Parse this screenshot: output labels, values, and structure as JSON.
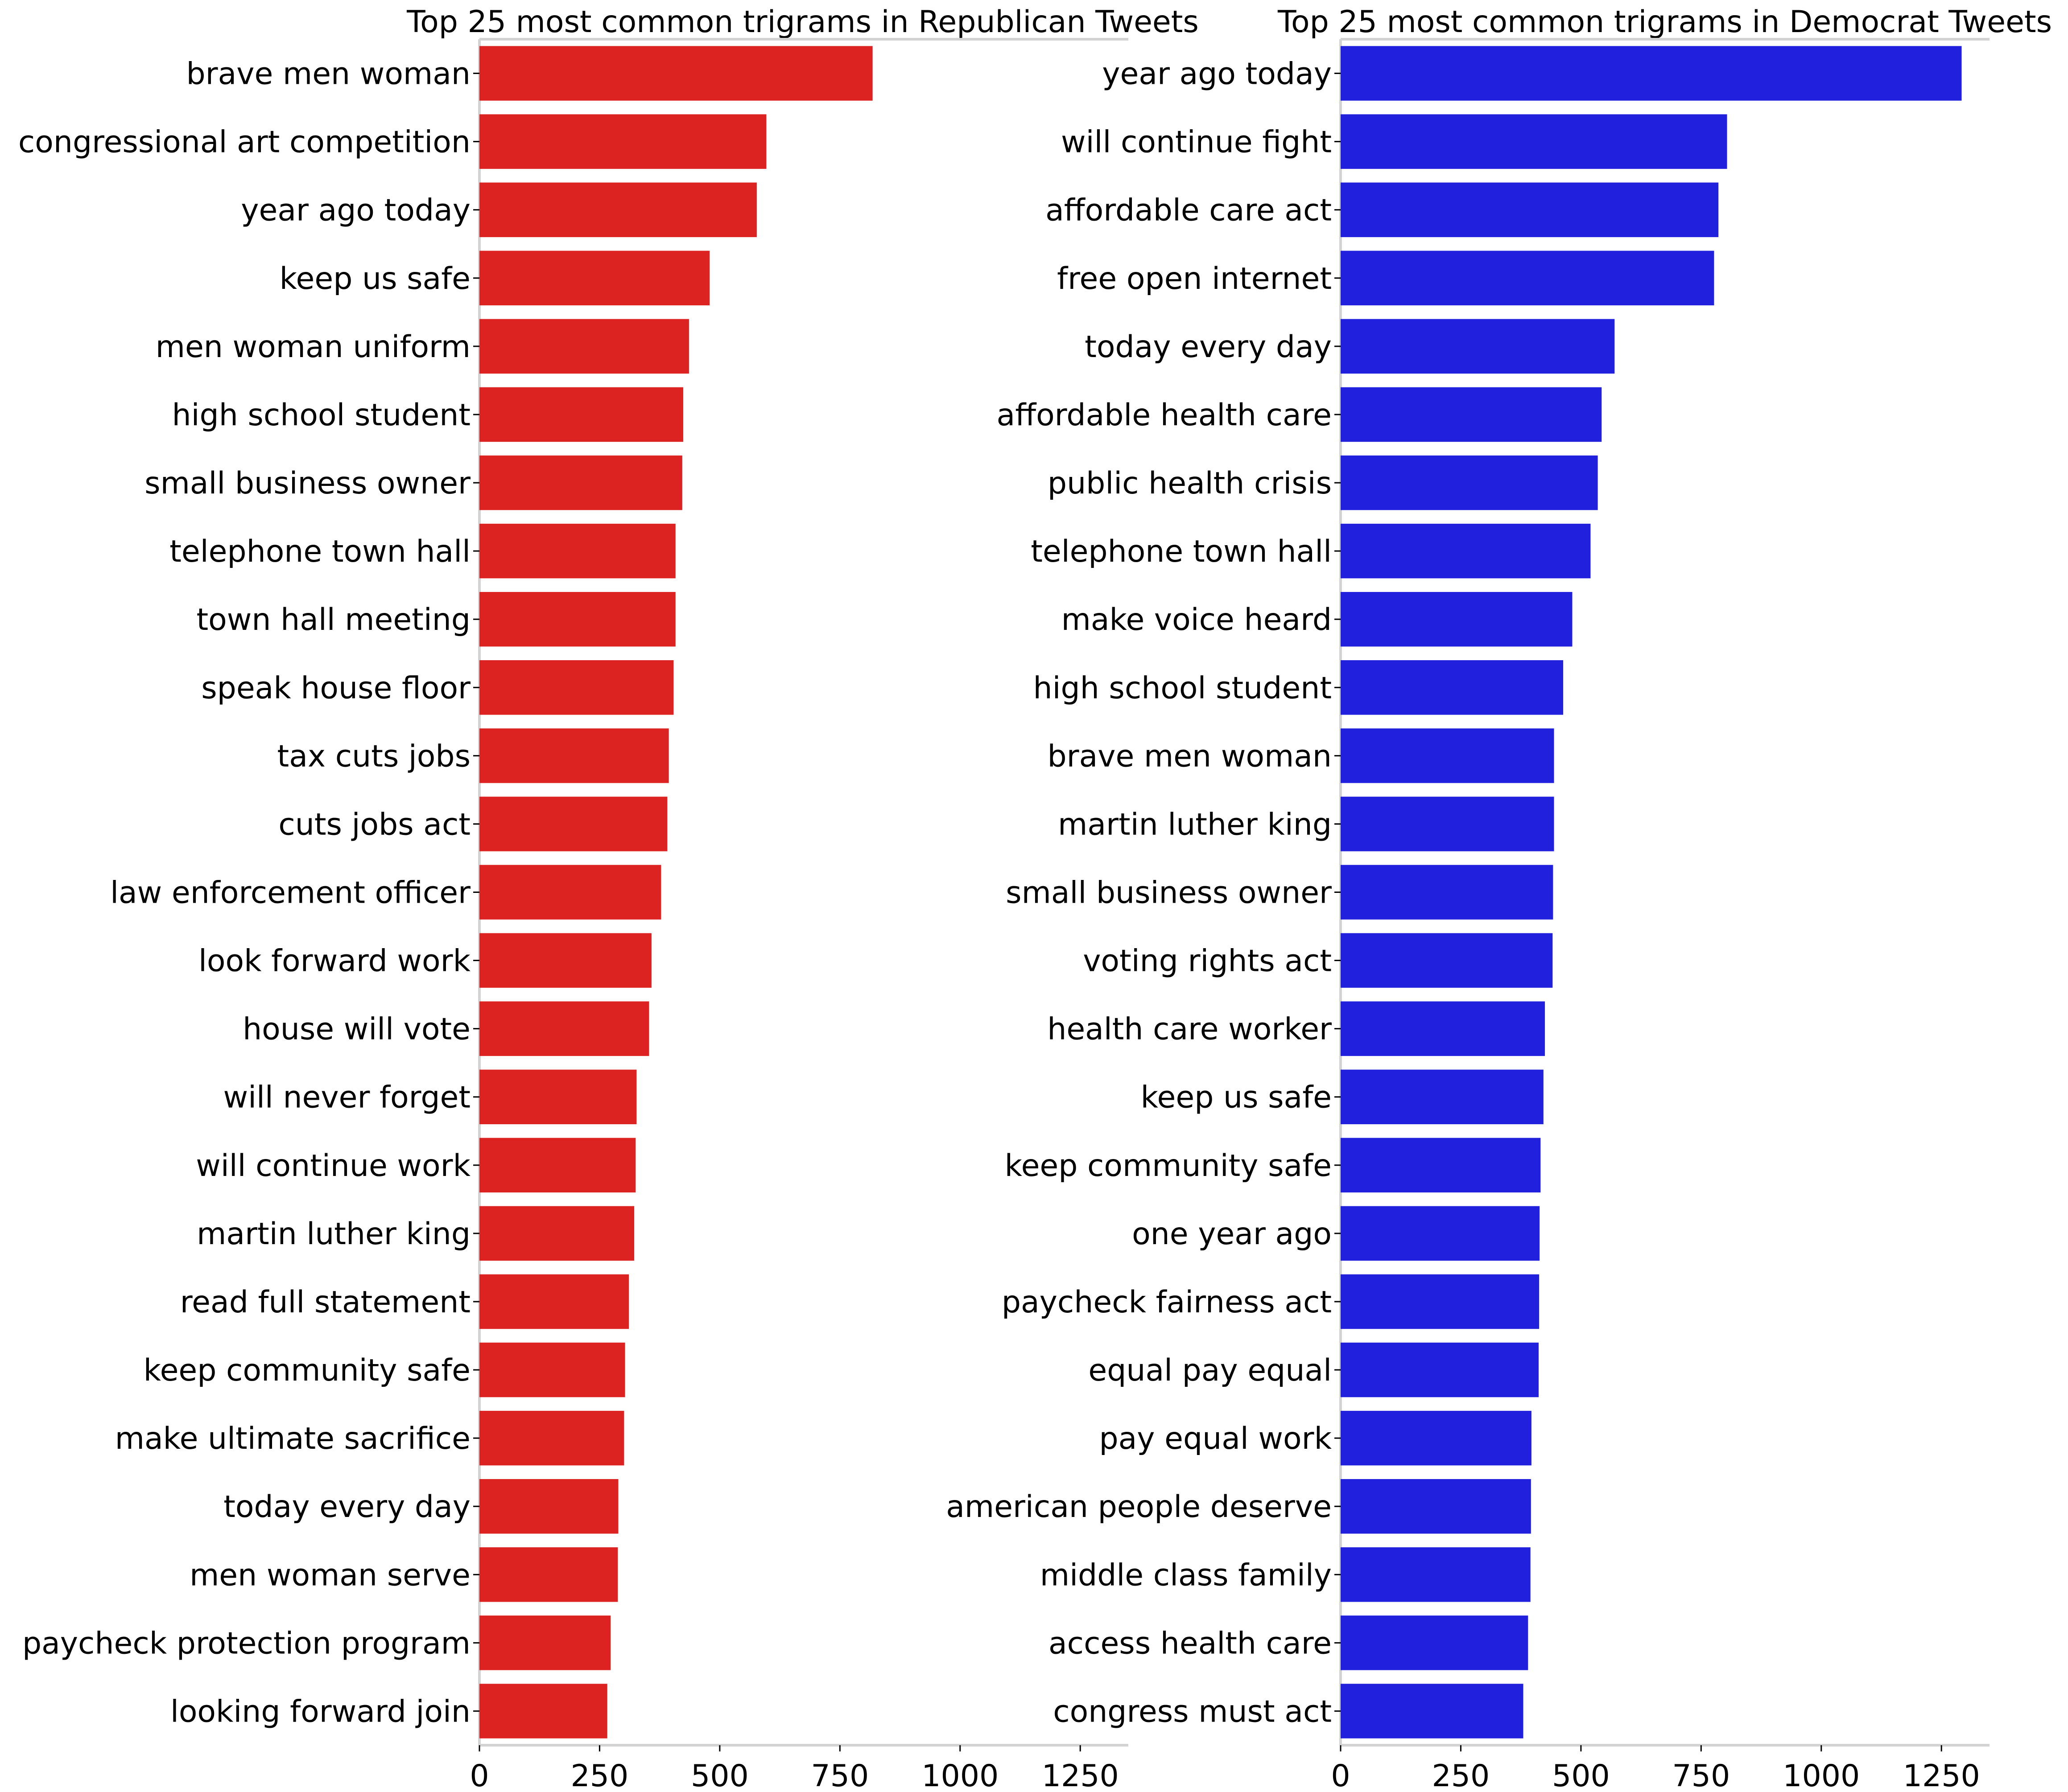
{
  "chart_data": [
    {
      "type": "bar",
      "orientation": "horizontal",
      "title": "Top 25 most common trigrams in Republican Tweets",
      "xlabel": "",
      "ylabel": "",
      "color": "#dd2222",
      "xlim": [
        0,
        1350
      ],
      "xticks": [
        0,
        250,
        500,
        750,
        1000,
        1250
      ],
      "grid": false,
      "categories": [
        "brave men woman",
        "congressional art competition",
        "year ago today",
        "keep us safe",
        "men woman uniform",
        "high school student",
        "small business owner",
        "telephone town hall",
        "town hall meeting",
        "speak house floor",
        "tax cuts jobs",
        "cuts jobs act",
        "law enforcement officer",
        "look forward work",
        "house will vote",
        "will never forget",
        "will continue work",
        "martin luther king",
        "read full statement",
        "keep community safe",
        "make ultimate sacrifice",
        "today every day",
        "men woman serve",
        "paycheck protection program",
        "looking forward join"
      ],
      "values": [
        818,
        597,
        577,
        479,
        436,
        424,
        422,
        408,
        408,
        404,
        394,
        391,
        378,
        358,
        353,
        327,
        325,
        322,
        311,
        303,
        301,
        289,
        288,
        273,
        266
      ]
    },
    {
      "type": "bar",
      "orientation": "horizontal",
      "title": "Top 25 most common trigrams in Democrat Tweets",
      "xlabel": "",
      "ylabel": "",
      "color": "#2020dd",
      "xlim": [
        0,
        1350
      ],
      "xticks": [
        0,
        250,
        500,
        750,
        1000,
        1250
      ],
      "grid": false,
      "categories": [
        "year ago today",
        "will continue fight",
        "affordable care act",
        "free open internet",
        "today every day",
        "affordable health care",
        "public health crisis",
        "telephone town hall",
        "make voice heard",
        "high school student",
        "brave men woman",
        "martin luther king",
        "small business owner",
        "voting rights act",
        "health care worker",
        "keep us safe",
        "keep community safe",
        "one year ago",
        "paycheck fairness act",
        "equal pay equal",
        "pay equal work",
        "american people deserve",
        "middle class family",
        "access health care",
        "congress must act"
      ],
      "values": [
        1292,
        804,
        786,
        777,
        570,
        543,
        535,
        520,
        482,
        463,
        444,
        444,
        442,
        441,
        425,
        422,
        416,
        414,
        413,
        412,
        397,
        396,
        395,
        390,
        380
      ]
    }
  ]
}
